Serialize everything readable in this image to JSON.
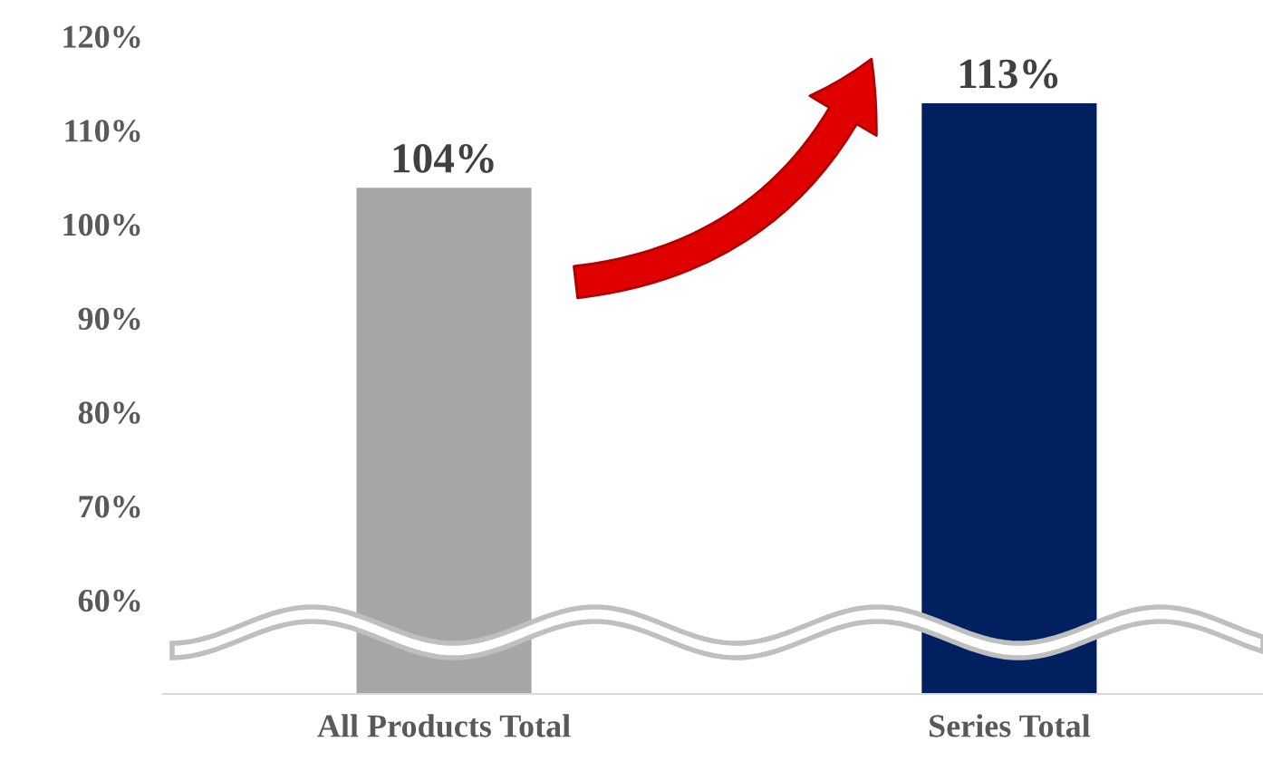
{
  "chart_data": {
    "type": "bar",
    "categories": [
      "All Products Total",
      "Series Total"
    ],
    "values": [
      104,
      113
    ],
    "colors": [
      "#a6a6a6",
      "#002060"
    ],
    "data_labels": true,
    "value_labels": [
      "104%",
      "113%"
    ],
    "ylim": [
      50,
      120
    ],
    "yticks": [
      {
        "value": 60,
        "label": "60%"
      },
      {
        "value": 70,
        "label": "70%"
      },
      {
        "value": 80,
        "label": "80%"
      },
      {
        "value": 90,
        "label": "90%"
      },
      {
        "value": 100,
        "label": "100%"
      },
      {
        "value": 110,
        "label": "110%"
      },
      {
        "value": 120,
        "label": "120%"
      }
    ],
    "grid": false,
    "legend": false
  }
}
